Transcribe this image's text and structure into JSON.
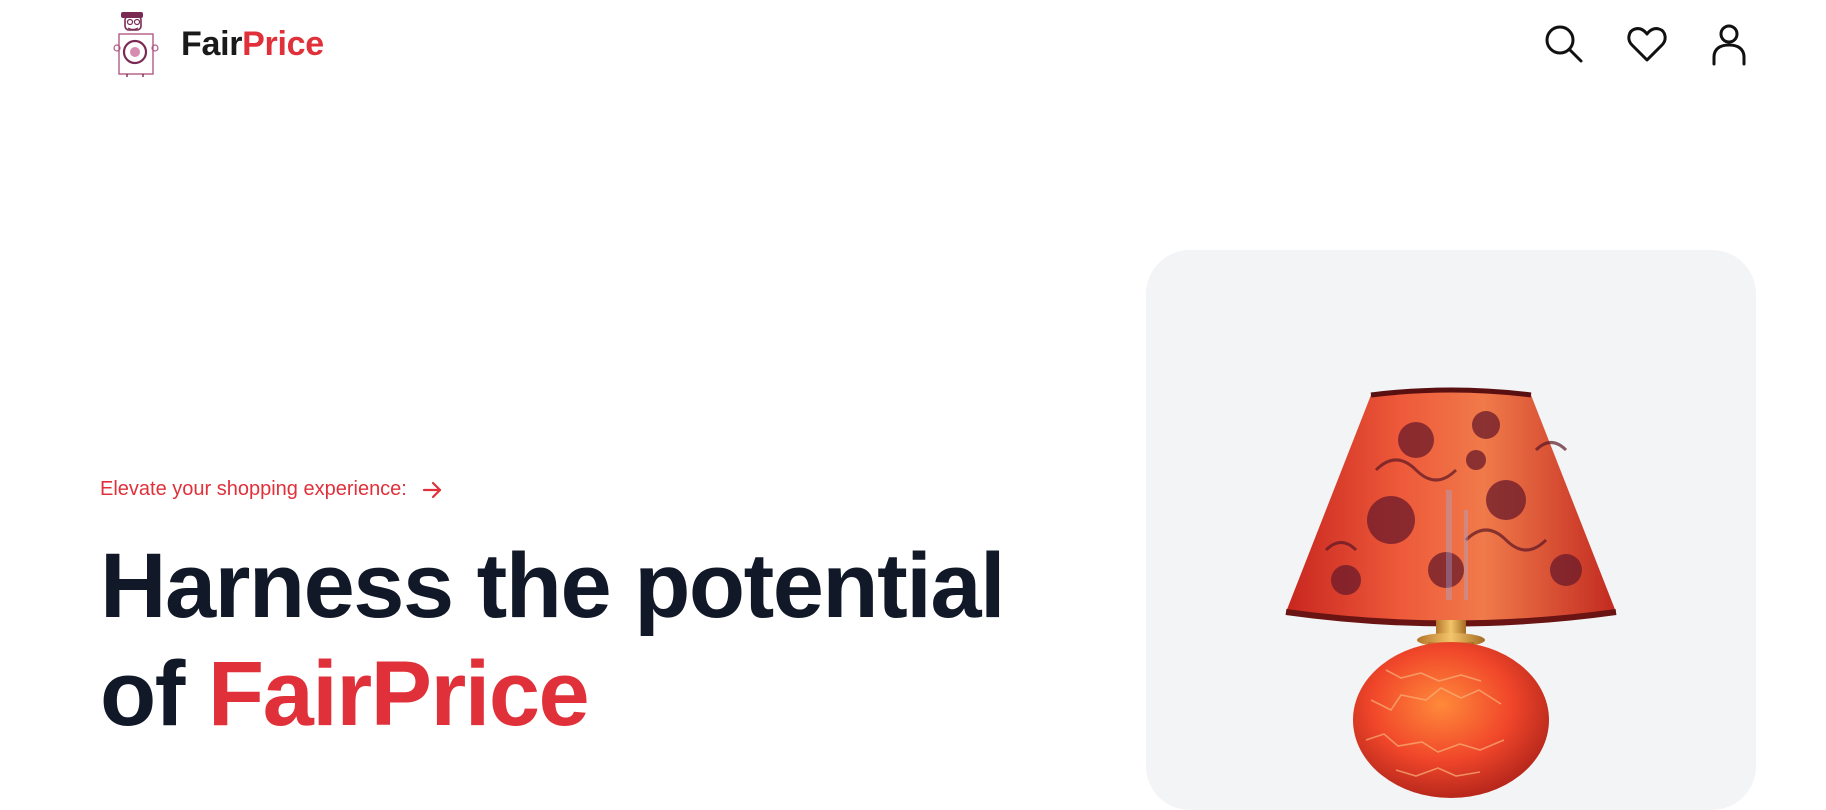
{
  "header": {
    "brand": {
      "part1": "Fair",
      "part2": "Price"
    },
    "icons": [
      "search-icon",
      "heart-icon",
      "user-icon"
    ]
  },
  "hero": {
    "eyebrow": "Elevate your shopping experience:",
    "headline_line1": "Harness the potential",
    "headline_prefix": "of",
    "headline_accent": "FairPrice"
  },
  "colors": {
    "accent": "#e0313b",
    "heading": "#111827",
    "card_bg": "#f3f4f6"
  }
}
